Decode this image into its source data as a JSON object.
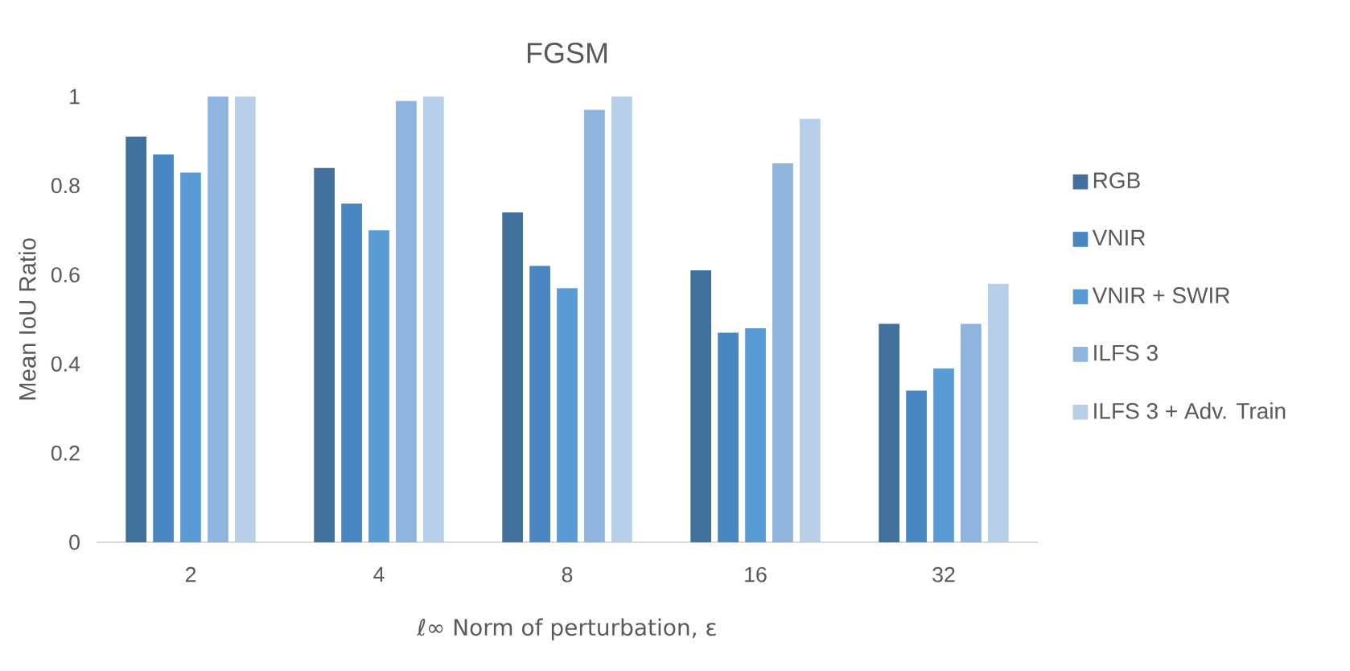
{
  "chart_data": {
    "type": "bar",
    "title": "FGSM",
    "xlabel": "ℓ∞ Norm of perturbation, ε",
    "ylabel": "Mean IoU Ratio",
    "categories": [
      "2",
      "4",
      "8",
      "16",
      "32"
    ],
    "series": [
      {
        "name": "RGB",
        "color": "#41719c",
        "values": [
          0.91,
          0.84,
          0.74,
          0.61,
          0.49
        ]
      },
      {
        "name": "VNIR",
        "color": "#4a86c1",
        "values": [
          0.87,
          0.76,
          0.62,
          0.47,
          0.34
        ]
      },
      {
        "name": "VNIR + SWIR",
        "color": "#5b9bd5",
        "values": [
          0.83,
          0.7,
          0.57,
          0.48,
          0.39
        ]
      },
      {
        "name": "ILFS 3",
        "color": "#8fb4de",
        "values": [
          1.0,
          0.99,
          0.97,
          0.85,
          0.49
        ]
      },
      {
        "name": "ILFS 3 + Adv. Train",
        "color": "#b8cfe9",
        "values": [
          1.0,
          1.0,
          1.0,
          0.95,
          0.58
        ]
      }
    ],
    "ylim": [
      0,
      1
    ],
    "yticks": [
      0,
      0.2,
      0.4,
      0.6,
      0.8,
      1
    ],
    "grid": false,
    "legend": "right"
  }
}
